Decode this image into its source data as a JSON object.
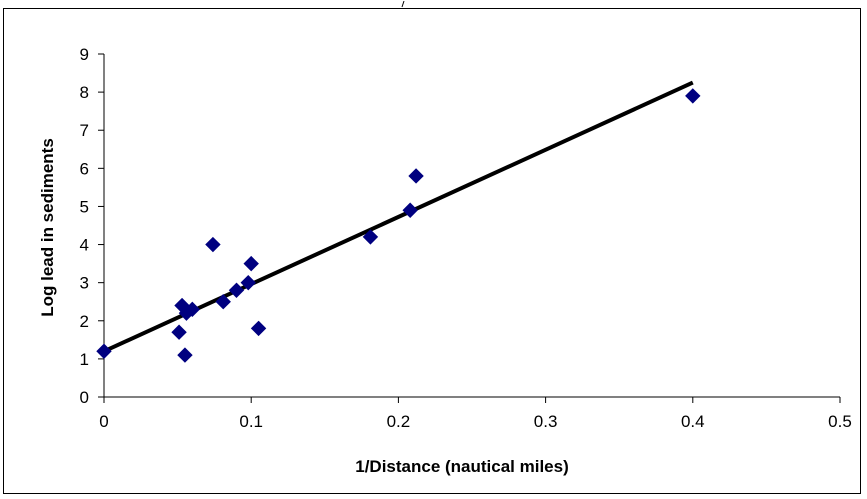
{
  "chart_data": {
    "type": "scatter",
    "title": "",
    "xlabel": "1/Distance (nautical miles)",
    "ylabel": "Log lead in sediments",
    "xlim": [
      0,
      0.5
    ],
    "ylim": [
      0,
      9
    ],
    "x_ticks": [
      "0",
      "0.1",
      "0.2",
      "0.3",
      "0.4",
      "0.5"
    ],
    "y_ticks": [
      "0",
      "1",
      "2",
      "3",
      "4",
      "5",
      "6",
      "7",
      "8",
      "9"
    ],
    "grid": false,
    "legend": "none",
    "series": [
      {
        "marker": "diamond",
        "color": "#000080",
        "points": [
          {
            "x": 0.0,
            "y": 1.2
          },
          {
            "x": 0.051,
            "y": 1.7
          },
          {
            "x": 0.053,
            "y": 2.4
          },
          {
            "x": 0.055,
            "y": 1.1
          },
          {
            "x": 0.056,
            "y": 2.2
          },
          {
            "x": 0.06,
            "y": 2.3
          },
          {
            "x": 0.074,
            "y": 4.0
          },
          {
            "x": 0.081,
            "y": 2.5
          },
          {
            "x": 0.09,
            "y": 2.8
          },
          {
            "x": 0.098,
            "y": 3.0
          },
          {
            "x": 0.1,
            "y": 3.5
          },
          {
            "x": 0.105,
            "y": 1.8
          },
          {
            "x": 0.181,
            "y": 4.2
          },
          {
            "x": 0.208,
            "y": 4.9
          },
          {
            "x": 0.212,
            "y": 5.8
          },
          {
            "x": 0.4,
            "y": 7.9
          }
        ]
      }
    ],
    "trendline": {
      "color": "#000000",
      "from": {
        "x": 0.0,
        "y": 1.2
      },
      "to": {
        "x": 0.4,
        "y": 8.25
      }
    }
  }
}
